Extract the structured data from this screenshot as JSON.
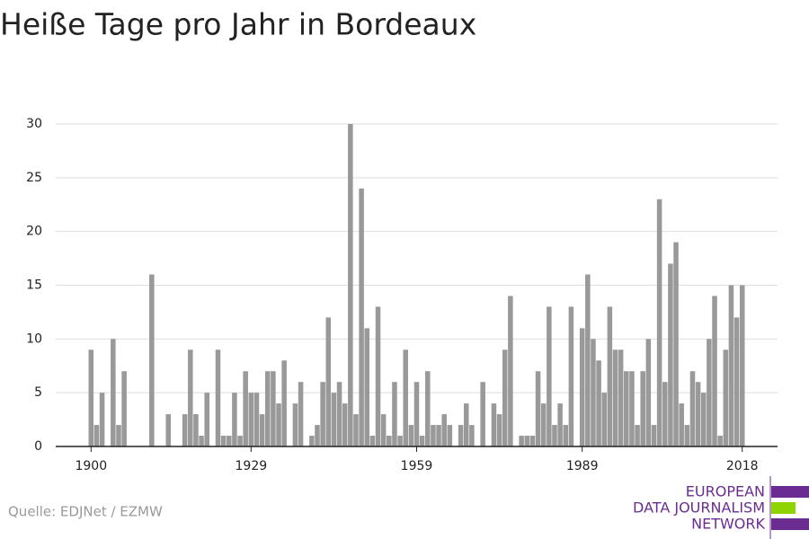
{
  "chart_data": {
    "type": "bar",
    "title": "Heiße Tage pro Jahr in Bordeaux",
    "source": "Quelle: EDJNet / EZMW",
    "logo": [
      "EUROPEAN",
      "DATA JOURNALISM",
      "NETWORK"
    ],
    "x": [
      1900,
      1901,
      1902,
      1903,
      1904,
      1905,
      1906,
      1907,
      1908,
      1909,
      1910,
      1911,
      1912,
      1913,
      1914,
      1915,
      1916,
      1917,
      1918,
      1919,
      1920,
      1921,
      1922,
      1923,
      1924,
      1925,
      1926,
      1927,
      1928,
      1929,
      1930,
      1931,
      1932,
      1933,
      1934,
      1935,
      1936,
      1937,
      1938,
      1939,
      1940,
      1941,
      1942,
      1943,
      1944,
      1945,
      1946,
      1947,
      1948,
      1949,
      1950,
      1951,
      1952,
      1953,
      1954,
      1955,
      1956,
      1957,
      1958,
      1959,
      1960,
      1961,
      1962,
      1963,
      1964,
      1965,
      1966,
      1967,
      1968,
      1969,
      1970,
      1971,
      1972,
      1973,
      1974,
      1975,
      1976,
      1977,
      1978,
      1979,
      1980,
      1981,
      1982,
      1983,
      1984,
      1985,
      1986,
      1987,
      1988,
      1989,
      1990,
      1991,
      1992,
      1993,
      1994,
      1995,
      1996,
      1997,
      1998,
      1999,
      2000,
      2001,
      2002,
      2003,
      2004,
      2005,
      2006,
      2007,
      2008,
      2009,
      2010,
      2011,
      2012,
      2013,
      2014,
      2015,
      2016,
      2017,
      2018
    ],
    "values": [
      9,
      2,
      5,
      0,
      10,
      2,
      7,
      0,
      0,
      0,
      0,
      16,
      0,
      0,
      3,
      0,
      0,
      3,
      9,
      3,
      1,
      5,
      0,
      9,
      1,
      1,
      5,
      1,
      7,
      5,
      5,
      3,
      7,
      7,
      4,
      8,
      0,
      4,
      6,
      0,
      1,
      2,
      6,
      12,
      5,
      6,
      4,
      30,
      3,
      24,
      11,
      1,
      13,
      3,
      1,
      6,
      1,
      9,
      2,
      6,
      1,
      7,
      2,
      2,
      3,
      2,
      0,
      2,
      4,
      2,
      0,
      6,
      0,
      4,
      3,
      9,
      14,
      0,
      1,
      1,
      1,
      7,
      4,
      13,
      2,
      4,
      2,
      13,
      0,
      11,
      16,
      10,
      8,
      5,
      13,
      9,
      9,
      7,
      7,
      2,
      7,
      10,
      2,
      23,
      6,
      17,
      19,
      4,
      2,
      7,
      6,
      5,
      10,
      14,
      1,
      9,
      15,
      12,
      15
    ],
    "color": "#999999",
    "xlim": [
      1893.6,
      2024.4
    ],
    "xticks": [
      1900,
      1929,
      1959,
      1989,
      2018
    ],
    "ylim": [
      0,
      30
    ],
    "yticks": [
      0,
      5,
      10,
      15,
      20,
      25,
      30
    ],
    "grid": true
  }
}
